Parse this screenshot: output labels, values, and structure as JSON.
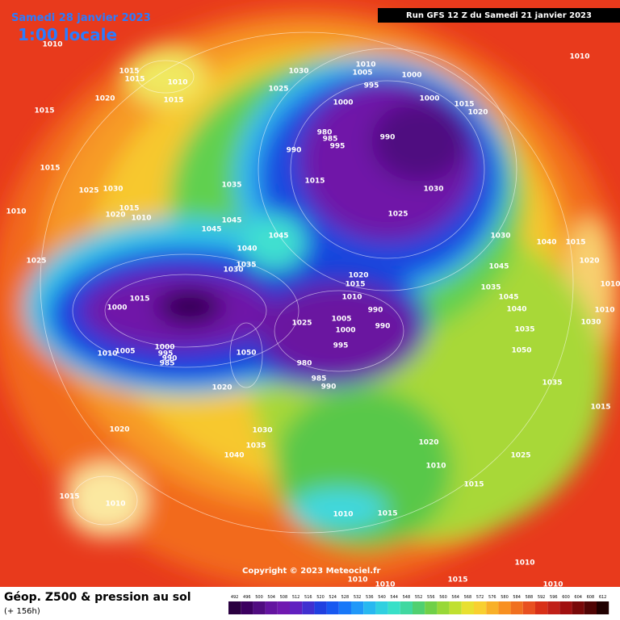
{
  "header": {
    "date": "Samedi 28 janvier 2023",
    "time": "1:00 locale",
    "run": "Run GFS 12 Z du Samedi 21 janvier 2023"
  },
  "footer": {
    "title": "Géop. Z500 & pression au sol",
    "lead": "(+ 156h)",
    "copyright": "Copyright © 2023 Meteociel.fr"
  },
  "isobars": [
    "1010",
    "1015",
    "1015",
    "1010",
    "1015",
    "1020",
    "1015",
    "1030",
    "1025",
    "1010",
    "1005",
    "995",
    "1000",
    "1010",
    "1000",
    "1000",
    "1015",
    "1020",
    "980",
    "985",
    "995",
    "990",
    "990",
    "1015",
    "1025",
    "1030",
    "1015",
    "1035",
    "1030",
    "1020",
    "1015",
    "1010",
    "1010",
    "1025",
    "1045",
    "1045",
    "1045",
    "1030",
    "1040",
    "1015",
    "1040",
    "1035",
    "1030",
    "1025",
    "1020",
    "1045",
    "1020",
    "1015",
    "1035",
    "1045",
    "1010",
    "1015",
    "1010",
    "1000",
    "990",
    "1040",
    "1010",
    "1025",
    "1005",
    "1000",
    "990",
    "1030",
    "1035",
    "1005",
    "1000",
    "995",
    "990",
    "985",
    "1010",
    "995",
    "1050",
    "1050",
    "980",
    "985",
    "990",
    "1020",
    "1035",
    "1015",
    "1030",
    "1020",
    "1035",
    "1040",
    "1020",
    "1010",
    "1025",
    "1015",
    "1015",
    "1010",
    "1010",
    "1015",
    "1010",
    "1010",
    "1010",
    "1015",
    "1010"
  ],
  "scale": [
    492,
    496,
    500,
    504,
    508,
    512,
    516,
    520,
    524,
    528,
    532,
    536,
    540,
    544,
    548,
    552,
    556,
    560,
    564,
    568,
    572,
    576,
    580,
    584,
    588,
    592,
    596,
    600,
    604,
    608,
    612
  ]
}
